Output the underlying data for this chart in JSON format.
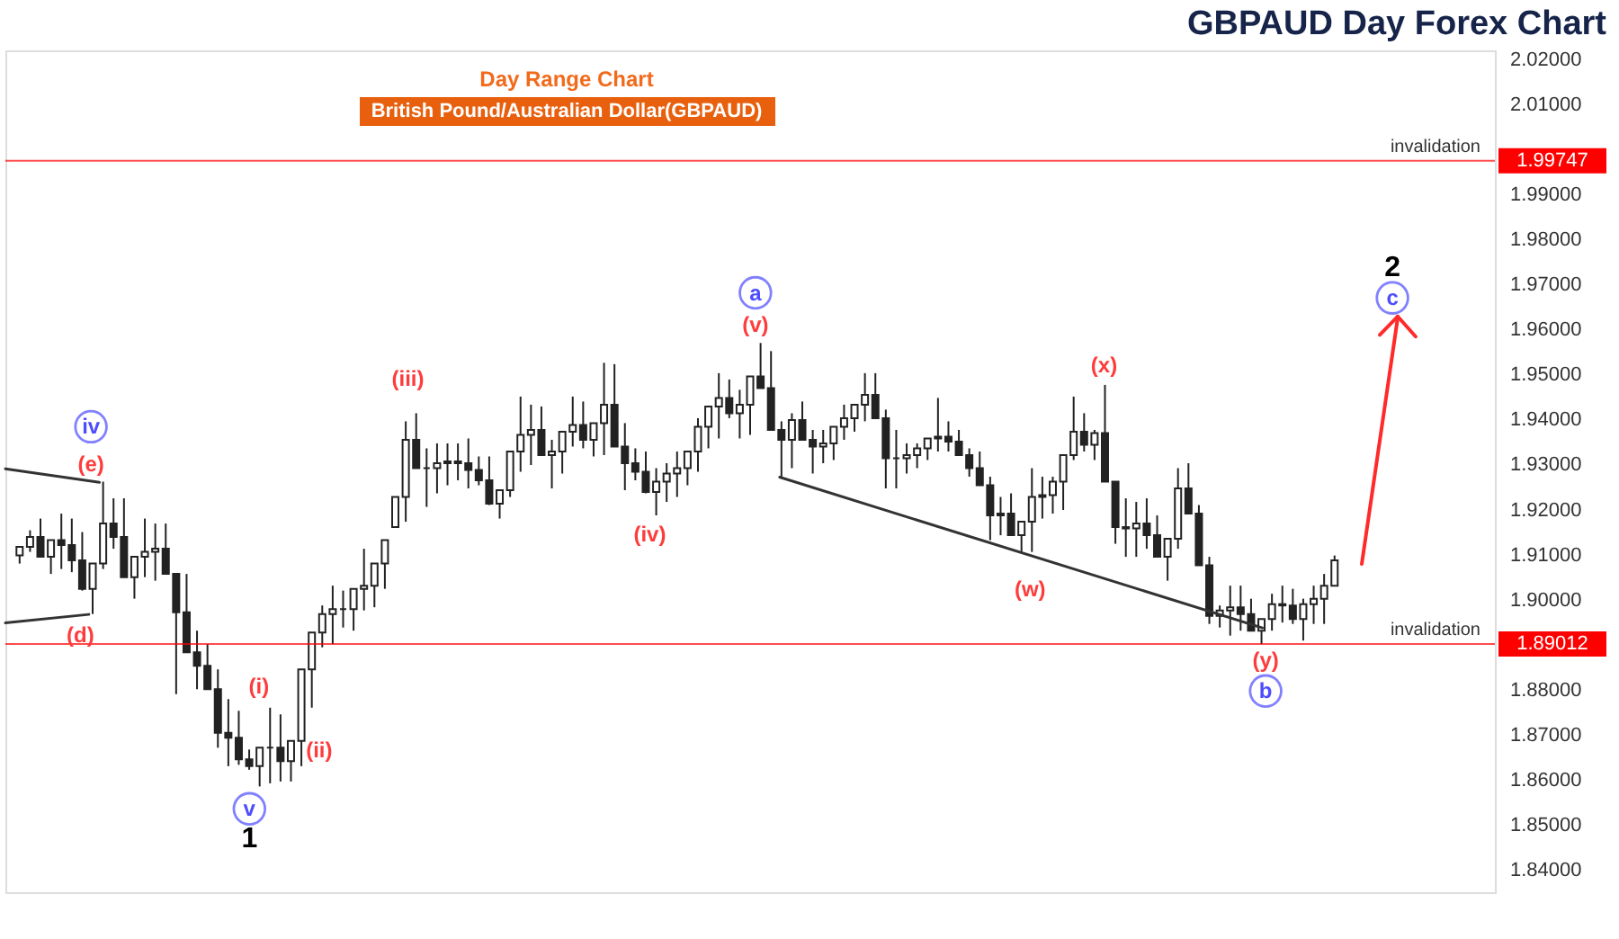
{
  "chart_data": {
    "type": "candlestick",
    "title": "GBPAUD Day Forex Chart",
    "subtitle": "Day Range Chart",
    "tick_labels": "y",
    "categories": [
      null,
      null,
      null,
      null,
      null,
      null,
      null,
      null,
      null,
      null,
      null,
      null,
      null,
      null,
      null,
      null,
      null,
      null,
      null,
      null,
      null,
      null,
      null,
      null,
      null,
      null,
      null,
      null,
      null,
      null,
      null,
      null,
      null,
      null,
      null,
      null,
      null,
      null,
      null,
      null,
      null,
      null,
      null,
      null,
      null,
      null,
      null,
      null,
      null,
      null,
      null,
      null,
      null,
      null,
      null,
      null,
      null,
      null,
      null,
      null,
      null,
      null,
      null,
      null,
      null,
      null,
      null,
      null,
      null,
      null,
      null,
      null,
      null,
      null,
      null,
      null,
      null,
      null,
      null,
      null,
      null,
      null,
      null,
      null,
      null,
      null,
      null,
      null,
      null,
      null,
      null,
      null,
      null,
      null,
      null,
      null,
      null,
      null,
      null,
      null,
      null,
      null,
      null,
      null,
      null,
      null,
      null,
      null,
      null,
      null,
      null,
      null,
      null,
      null,
      null,
      null,
      null,
      null,
      null,
      null,
      null,
      null,
      null,
      null,
      null,
      null,
      null,
      null,
      null,
      null,
      null,
      null,
      null,
      null,
      null,
      null,
      null,
      null,
      null,
      null,
      null
    ],
    "ylim": [
      1.835,
      2.022
    ],
    "yticks": [
      {
        "value": 1.84,
        "label": "1.84000"
      },
      {
        "value": 1.85,
        "label": "1.85000"
      },
      {
        "value": 1.86,
        "label": "1.86000"
      },
      {
        "value": 1.87,
        "label": "1.87000"
      },
      {
        "value": 1.88,
        "label": "1.88000"
      },
      {
        "value": 1.9,
        "label": "1.90000"
      },
      {
        "value": 1.91,
        "label": "1.91000"
      },
      {
        "value": 1.92,
        "label": "1.92000"
      },
      {
        "value": 1.93,
        "label": "1.93000"
      },
      {
        "value": 1.94,
        "label": "1.94000"
      },
      {
        "value": 1.95,
        "label": "1.95000"
      },
      {
        "value": 1.96,
        "label": "1.96000"
      },
      {
        "value": 1.97,
        "label": "1.97000"
      },
      {
        "value": 1.98,
        "label": "1.98000"
      },
      {
        "value": 1.99,
        "label": "1.99000"
      },
      {
        "value": 2.01,
        "label": "2.01000"
      },
      {
        "value": 2.02,
        "label": "2.02000"
      }
    ],
    "color": "#222222",
    "ohlc": [
      [
        1.9098,
        1.9117,
        1.908,
        1.9117
      ],
      [
        1.9117,
        1.9154,
        1.9106,
        1.9139
      ],
      [
        1.9139,
        1.918,
        1.9095,
        1.9095
      ],
      [
        1.9095,
        1.9132,
        1.9057,
        1.9132
      ],
      [
        1.9132,
        1.9191,
        1.9068,
        1.9121
      ],
      [
        1.9121,
        1.918,
        1.9061,
        1.9087
      ],
      [
        1.9087,
        1.915,
        1.902,
        1.9024
      ],
      [
        1.9024,
        1.908,
        1.8968,
        1.908
      ],
      [
        1.908,
        1.9262,
        1.9068,
        1.9169
      ],
      [
        1.9169,
        1.9225,
        1.9113,
        1.9139
      ],
      [
        1.9139,
        1.9225,
        1.905,
        1.905
      ],
      [
        1.905,
        1.9095,
        1.9002,
        1.9095
      ],
      [
        1.9095,
        1.918,
        1.905,
        1.9106
      ],
      [
        1.9106,
        1.9169,
        1.9042,
        1.9113
      ],
      [
        1.9113,
        1.9169,
        1.9057,
        1.9057
      ],
      [
        1.9057,
        1.9057,
        1.879,
        1.8972
      ],
      [
        1.8972,
        1.9057,
        1.8883,
        1.8883
      ],
      [
        1.8883,
        1.8931,
        1.8801,
        1.8853
      ],
      [
        1.8853,
        1.8901,
        1.8801,
        1.8801
      ],
      [
        1.8801,
        1.8845,
        1.8671,
        1.8704
      ],
      [
        1.8704,
        1.8779,
        1.863,
        1.8693
      ],
      [
        1.8693,
        1.8753,
        1.8633,
        1.8645
      ],
      [
        1.8645,
        1.8667,
        1.8622,
        1.863
      ],
      [
        1.863,
        1.8671,
        1.8585,
        1.8671
      ],
      [
        1.8671,
        1.876,
        1.8592,
        1.8671
      ],
      [
        1.8671,
        1.8745,
        1.8596,
        1.8641
      ],
      [
        1.8641,
        1.8686,
        1.8596,
        1.8686
      ],
      [
        1.8686,
        1.8845,
        1.863,
        1.8845
      ],
      [
        1.8845,
        1.8927,
        1.876,
        1.8927
      ],
      [
        1.8927,
        1.8987,
        1.8894,
        1.8968
      ],
      [
        1.8968,
        1.9031,
        1.8901,
        1.8979
      ],
      [
        1.8979,
        1.902,
        1.8938,
        1.8979
      ],
      [
        1.8979,
        1.9024,
        1.8931,
        1.9024
      ],
      [
        1.9024,
        1.9113,
        1.8976,
        1.9031
      ],
      [
        1.9031,
        1.908,
        1.8983,
        1.908
      ],
      [
        1.908,
        1.9132,
        1.9024,
        1.9132
      ],
      [
        1.9161,
        1.9228,
        1.9161,
        1.9228
      ],
      [
        1.9228,
        1.9396,
        1.9173,
        1.9355
      ],
      [
        1.9355,
        1.9414,
        1.9292,
        1.9292
      ],
      [
        1.9292,
        1.9336,
        1.9206,
        1.9292
      ],
      [
        1.9292,
        1.9347,
        1.9236,
        1.9303
      ],
      [
        1.9303,
        1.9347,
        1.9254,
        1.9307
      ],
      [
        1.9307,
        1.9347,
        1.9265,
        1.9303
      ],
      [
        1.9303,
        1.9358,
        1.9247,
        1.9288
      ],
      [
        1.9288,
        1.9318,
        1.9254,
        1.9265
      ],
      [
        1.9265,
        1.9318,
        1.921,
        1.9213
      ],
      [
        1.9213,
        1.9243,
        1.918,
        1.9243
      ],
      [
        1.9243,
        1.9329,
        1.9228,
        1.9329
      ],
      [
        1.9329,
        1.9451,
        1.9284,
        1.9366
      ],
      [
        1.9366,
        1.9433,
        1.9299,
        1.9377
      ],
      [
        1.9377,
        1.9429,
        1.9321,
        1.9321
      ],
      [
        1.9321,
        1.9355,
        1.9247,
        1.9329
      ],
      [
        1.9329,
        1.9373,
        1.928,
        1.9373
      ],
      [
        1.9373,
        1.9451,
        1.934,
        1.9388
      ],
      [
        1.9388,
        1.944,
        1.9336,
        1.9355
      ],
      [
        1.9355,
        1.9392,
        1.9318,
        1.9392
      ],
      [
        1.9392,
        1.9526,
        1.9321,
        1.9433
      ],
      [
        1.9433,
        1.9523,
        1.934,
        1.934
      ],
      [
        1.934,
        1.9392,
        1.9243,
        1.9303
      ],
      [
        1.9303,
        1.9336,
        1.9265,
        1.9284
      ],
      [
        1.9284,
        1.9329,
        1.9236,
        1.9239
      ],
      [
        1.9239,
        1.9292,
        1.9187,
        1.9262
      ],
      [
        1.9262,
        1.9303,
        1.9217,
        1.928
      ],
      [
        1.928,
        1.9329,
        1.9228,
        1.9292
      ],
      [
        1.9292,
        1.9329,
        1.9254,
        1.9329
      ],
      [
        1.9329,
        1.9403,
        1.9284,
        1.9384
      ],
      [
        1.9384,
        1.9429,
        1.9336,
        1.9429
      ],
      [
        1.9429,
        1.9503,
        1.9358,
        1.9448
      ],
      [
        1.9448,
        1.9489,
        1.9403,
        1.9414
      ],
      [
        1.9414,
        1.9466,
        1.9358,
        1.9433
      ],
      [
        1.9433,
        1.9496,
        1.9366,
        1.9496
      ],
      [
        1.9496,
        1.957,
        1.947,
        1.947
      ],
      [
        1.947,
        1.9552,
        1.9377,
        1.9377
      ],
      [
        1.9377,
        1.9396,
        1.9273,
        1.9355
      ],
      [
        1.9355,
        1.9414,
        1.9292,
        1.9399
      ],
      [
        1.9399,
        1.944,
        1.9355,
        1.9355
      ],
      [
        1.9355,
        1.9377,
        1.928,
        1.934
      ],
      [
        1.934,
        1.9377,
        1.9303,
        1.9347
      ],
      [
        1.9347,
        1.9384,
        1.931,
        1.9384
      ],
      [
        1.9384,
        1.9433,
        1.9355,
        1.9403
      ],
      [
        1.9403,
        1.9433,
        1.9373,
        1.9433
      ],
      [
        1.9433,
        1.9503,
        1.9396,
        1.9455
      ],
      [
        1.9455,
        1.9503,
        1.9403,
        1.9403
      ],
      [
        1.9403,
        1.9422,
        1.9247,
        1.9314
      ],
      [
        1.9314,
        1.9377,
        1.9247,
        1.9314
      ],
      [
        1.9314,
        1.9347,
        1.928,
        1.9321
      ],
      [
        1.9321,
        1.9347,
        1.9292,
        1.9336
      ],
      [
        1.9336,
        1.9358,
        1.931,
        1.9358
      ],
      [
        1.9358,
        1.9448,
        1.9329,
        1.9362
      ],
      [
        1.9362,
        1.9396,
        1.9329,
        1.9351
      ],
      [
        1.9351,
        1.9377,
        1.9321,
        1.9321
      ],
      [
        1.9321,
        1.9336,
        1.9273,
        1.9292
      ],
      [
        1.9292,
        1.9329,
        1.9254,
        1.9254
      ],
      [
        1.9254,
        1.9273,
        1.9132,
        1.9187
      ],
      [
        1.9187,
        1.9228,
        1.9143,
        1.9191
      ],
      [
        1.9191,
        1.9236,
        1.9143,
        1.9143
      ],
      [
        1.9143,
        1.9173,
        1.9106,
        1.9173
      ],
      [
        1.9173,
        1.9292,
        1.9106,
        1.9228
      ],
      [
        1.9228,
        1.9273,
        1.918,
        1.9232
      ],
      [
        1.9232,
        1.9273,
        1.9191,
        1.9262
      ],
      [
        1.9262,
        1.9321,
        1.9199,
        1.9321
      ],
      [
        1.9321,
        1.9451,
        1.931,
        1.9373
      ],
      [
        1.9373,
        1.9414,
        1.9329,
        1.9344
      ],
      [
        1.9344,
        1.9377,
        1.931,
        1.937
      ],
      [
        1.937,
        1.9477,
        1.9262,
        1.9262
      ],
      [
        1.9262,
        1.9262,
        1.9124,
        1.9161
      ],
      [
        1.9161,
        1.9225,
        1.9095,
        1.9158
      ],
      [
        1.9158,
        1.9217,
        1.9095,
        1.9169
      ],
      [
        1.9169,
        1.9225,
        1.9113,
        1.9143
      ],
      [
        1.9143,
        1.9187,
        1.9095,
        1.9095
      ],
      [
        1.9095,
        1.9135,
        1.9042,
        1.9135
      ],
      [
        1.9135,
        1.9292,
        1.9113,
        1.9247
      ],
      [
        1.9247,
        1.9303,
        1.9191,
        1.9191
      ],
      [
        1.9191,
        1.921,
        1.9076,
        1.9076
      ],
      [
        1.9076,
        1.9095,
        1.8946,
        1.8964
      ],
      [
        1.8964,
        1.8987,
        1.8938,
        1.8976
      ],
      [
        1.8976,
        1.9031,
        1.892,
        1.8983
      ],
      [
        1.8983,
        1.9031,
        1.8931,
        1.8968
      ],
      [
        1.8968,
        1.9002,
        1.8931,
        1.8931
      ],
      [
        1.8931,
        1.8957,
        1.8901,
        1.8957
      ],
      [
        1.8957,
        1.9013,
        1.8931,
        1.899
      ],
      [
        1.899,
        1.9031,
        1.8949,
        1.8987
      ],
      [
        1.8987,
        1.9024,
        1.8946,
        1.8957
      ],
      [
        1.8957,
        1.9002,
        1.8909,
        1.899
      ],
      [
        1.899,
        1.9031,
        1.8946,
        1.9002
      ],
      [
        1.9002,
        1.9057,
        1.8946,
        1.9031
      ],
      [
        1.9031,
        1.9098,
        1.9031,
        1.9087
      ],
      null,
      null,
      null,
      null,
      null,
      null,
      null,
      null,
      null,
      null,
      null,
      null,
      null,
      null
    ],
    "ref_lines": [
      {
        "axis": "y",
        "value": 1.99747,
        "label": "invalidation",
        "color": "#ff0000"
      },
      {
        "axis": "y",
        "value": 1.89012,
        "label": "invalidation",
        "color": "#ff0000"
      }
    ],
    "annotations": [
      "iv",
      "(e)",
      "(d)",
      "(i)",
      "(ii)",
      "v",
      "1",
      "(iii)",
      "(iv)",
      "(v)",
      "a",
      "(w)",
      "(x)",
      "(y)",
      "b",
      "2",
      "c",
      "British Pound/Australian Dollar(GBPAUD)",
      "1.99747",
      "1.89012"
    ]
  }
}
